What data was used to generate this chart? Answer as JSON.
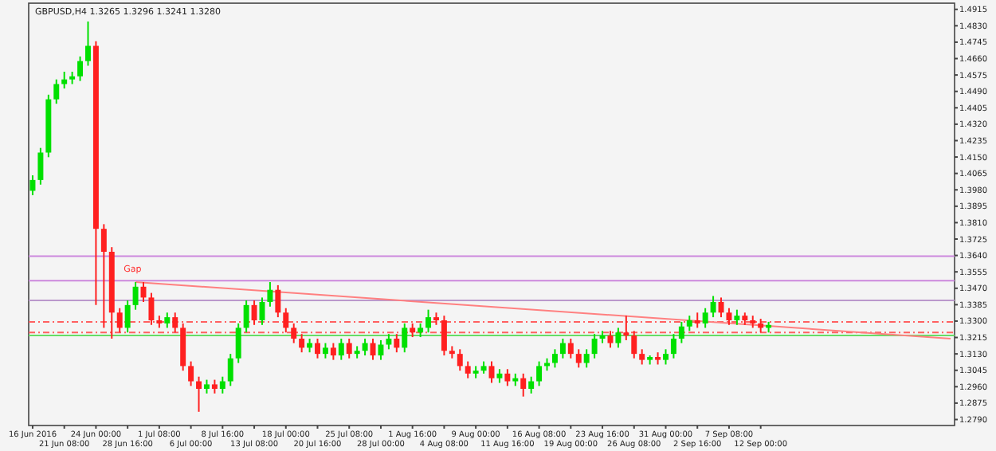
{
  "chart_data": {
    "type": "candlestick",
    "title": "GBPUSD,H4 1.3265 1.3296 1.3241 1.3280",
    "categories": [
      "16 Jun 2016",
      null,
      null,
      null,
      "21 Jun 08:00",
      null,
      null,
      null,
      "24 Jun 00:00",
      null,
      null,
      null,
      "28 Jun 16:00",
      null,
      null,
      null,
      "1 Jul 08:00",
      null,
      null,
      null,
      "6 Jul 00:00",
      null,
      null,
      null,
      "8 Jul 16:00",
      null,
      null,
      null,
      "13 Jul 08:00",
      null,
      null,
      null,
      "18 Jul 00:00",
      null,
      null,
      null,
      "20 Jul 16:00",
      null,
      null,
      null,
      "25 Jul 08:00",
      null,
      null,
      null,
      "28 Jul 00:00",
      null,
      null,
      null,
      "1 Aug 16:00",
      null,
      null,
      null,
      "4 Aug 08:00",
      null,
      null,
      null,
      "9 Aug 00:00",
      null,
      null,
      null,
      "11 Aug 16:00",
      null,
      null,
      null,
      "16 Aug 08:00",
      null,
      null,
      null,
      "19 Aug 00:00",
      null,
      null,
      null,
      "23 Aug 16:00",
      null,
      null,
      null,
      "26 Aug 08:00",
      null,
      null,
      null,
      "31 Aug 00:00",
      null,
      null,
      null,
      "2 Sep 16:00",
      null,
      null,
      null,
      "7 Sep 08:00",
      null,
      null,
      null,
      "12 Sep 00:00",
      null,
      null,
      null,
      null,
      null,
      null,
      null,
      null,
      null,
      null,
      null,
      null,
      null,
      null,
      null,
      null,
      null,
      null,
      null,
      null,
      null,
      null,
      null,
      null
    ],
    "ohlc": [
      [
        1.3975,
        1.4055,
        1.3952,
        1.4031
      ],
      [
        1.4031,
        1.4197,
        1.4007,
        1.4173
      ],
      [
        1.4173,
        1.4473,
        1.4149,
        1.4449
      ],
      [
        1.4449,
        1.4552,
        1.4426,
        1.4528
      ],
      [
        1.4528,
        1.4592,
        1.4505,
        1.4552
      ],
      [
        1.4552,
        1.4592,
        1.4528,
        1.4568
      ],
      [
        1.4568,
        1.4671,
        1.4544,
        1.4647
      ],
      [
        1.4647,
        1.4852,
        1.4623,
        1.4726
      ],
      [
        1.4726,
        1.475,
        1.3383,
        1.3778
      ],
      [
        1.3778,
        1.3802,
        1.3265,
        1.3659
      ],
      [
        1.3659,
        1.3683,
        1.3209,
        1.3344
      ],
      [
        1.3344,
        1.3367,
        1.3241,
        1.3265
      ],
      [
        1.3265,
        1.3407,
        1.3241,
        1.3383
      ],
      [
        1.3383,
        1.3502,
        1.3359,
        1.3478
      ],
      [
        1.3478,
        1.3502,
        1.3399,
        1.3422
      ],
      [
        1.3422,
        1.3446,
        1.328,
        1.3304
      ],
      [
        1.3304,
        1.3328,
        1.3265,
        1.3288
      ],
      [
        1.3288,
        1.3344,
        1.3265,
        1.332
      ],
      [
        1.332,
        1.3344,
        1.3241,
        1.3265
      ],
      [
        1.3265,
        1.3288,
        1.3043,
        1.3067
      ],
      [
        1.3067,
        1.3091,
        1.2964,
        1.2988
      ],
      [
        1.2988,
        1.3012,
        1.283,
        1.2949
      ],
      [
        1.2949,
        1.2996,
        1.2925,
        1.2972
      ],
      [
        1.2972,
        1.2996,
        1.2925,
        1.2949
      ],
      [
        1.2949,
        1.3012,
        1.2925,
        1.2988
      ],
      [
        1.2988,
        1.313,
        1.2964,
        1.3107
      ],
      [
        1.3107,
        1.3288,
        1.3083,
        1.3265
      ],
      [
        1.3265,
        1.3407,
        1.3241,
        1.3383
      ],
      [
        1.3383,
        1.3407,
        1.328,
        1.3304
      ],
      [
        1.3304,
        1.3422,
        1.328,
        1.3399
      ],
      [
        1.3399,
        1.3502,
        1.3375,
        1.3462
      ],
      [
        1.3462,
        1.3486,
        1.332,
        1.3344
      ],
      [
        1.3344,
        1.3367,
        1.3241,
        1.3265
      ],
      [
        1.3265,
        1.3288,
        1.3186,
        1.3209
      ],
      [
        1.3209,
        1.3233,
        1.3138,
        1.3162
      ],
      [
        1.3162,
        1.3209,
        1.3138,
        1.3186
      ],
      [
        1.3186,
        1.3209,
        1.3107,
        1.313
      ],
      [
        1.313,
        1.3186,
        1.3107,
        1.3162
      ],
      [
        1.3162,
        1.3186,
        1.3099,
        1.3122
      ],
      [
        1.3122,
        1.3209,
        1.3099,
        1.3186
      ],
      [
        1.3186,
        1.3209,
        1.3107,
        1.313
      ],
      [
        1.313,
        1.317,
        1.3107,
        1.3146
      ],
      [
        1.3146,
        1.3209,
        1.3122,
        1.3186
      ],
      [
        1.3186,
        1.3209,
        1.3099,
        1.3122
      ],
      [
        1.3122,
        1.3201,
        1.3099,
        1.3178
      ],
      [
        1.3178,
        1.3233,
        1.3154,
        1.3209
      ],
      [
        1.3209,
        1.3233,
        1.3138,
        1.3162
      ],
      [
        1.3162,
        1.3288,
        1.3138,
        1.3265
      ],
      [
        1.3265,
        1.3288,
        1.3217,
        1.3241
      ],
      [
        1.3241,
        1.3288,
        1.3217,
        1.3265
      ],
      [
        1.3265,
        1.3359,
        1.3241,
        1.332
      ],
      [
        1.332,
        1.3344,
        1.328,
        1.3304
      ],
      [
        1.3304,
        1.3328,
        1.3122,
        1.3146
      ],
      [
        1.3146,
        1.317,
        1.3107,
        1.313
      ],
      [
        1.313,
        1.3154,
        1.3043,
        1.3067
      ],
      [
        1.3067,
        1.3091,
        1.3004,
        1.3028
      ],
      [
        1.3028,
        1.3067,
        1.3004,
        1.3043
      ],
      [
        1.3043,
        1.3091,
        1.3028,
        1.3067
      ],
      [
        1.3067,
        1.3091,
        1.298,
        1.3004
      ],
      [
        1.3004,
        1.3051,
        1.298,
        1.3028
      ],
      [
        1.3028,
        1.3051,
        1.2964,
        1.2988
      ],
      [
        1.2988,
        1.3028,
        1.2964,
        1.3004
      ],
      [
        1.3004,
        1.3028,
        1.2909,
        1.2949
      ],
      [
        1.2949,
        1.3012,
        1.2925,
        1.2988
      ],
      [
        1.2988,
        1.3091,
        1.2964,
        1.3067
      ],
      [
        1.3067,
        1.3107,
        1.3043,
        1.3083
      ],
      [
        1.3083,
        1.3154,
        1.3059,
        1.313
      ],
      [
        1.313,
        1.3209,
        1.3107,
        1.3186
      ],
      [
        1.3186,
        1.3209,
        1.3107,
        1.313
      ],
      [
        1.313,
        1.3154,
        1.3059,
        1.3083
      ],
      [
        1.3083,
        1.3154,
        1.3059,
        1.313
      ],
      [
        1.313,
        1.3233,
        1.3107,
        1.3209
      ],
      [
        1.3209,
        1.3249,
        1.3186,
        1.3225
      ],
      [
        1.3225,
        1.3249,
        1.3162,
        1.3186
      ],
      [
        1.3186,
        1.3265,
        1.3162,
        1.3241
      ],
      [
        1.3241,
        1.3328,
        1.3201,
        1.3225
      ],
      [
        1.3225,
        1.3249,
        1.3107,
        1.313
      ],
      [
        1.313,
        1.3154,
        1.3075,
        1.3099
      ],
      [
        1.3099,
        1.3122,
        1.3075,
        1.3114
      ],
      [
        1.3114,
        1.3138,
        1.3075,
        1.3099
      ],
      [
        1.3099,
        1.3154,
        1.3075,
        1.313
      ],
      [
        1.313,
        1.3233,
        1.3107,
        1.3209
      ],
      [
        1.3209,
        1.3296,
        1.3186,
        1.3272
      ],
      [
        1.3272,
        1.3328,
        1.3249,
        1.3304
      ],
      [
        1.3304,
        1.3344,
        1.3265,
        1.3288
      ],
      [
        1.3288,
        1.3367,
        1.3265,
        1.3344
      ],
      [
        1.3344,
        1.343,
        1.332,
        1.3399
      ],
      [
        1.3399,
        1.3422,
        1.332,
        1.3344
      ],
      [
        1.3344,
        1.3367,
        1.328,
        1.3304
      ],
      [
        1.3304,
        1.3359,
        1.328,
        1.3328
      ],
      [
        1.3328,
        1.3344,
        1.328,
        1.3304
      ],
      [
        1.3304,
        1.3328,
        1.3265,
        1.3288
      ],
      [
        1.3288,
        1.3312,
        1.3241,
        1.3265
      ],
      [
        1.3265,
        1.3296,
        1.3241,
        1.328
      ],
      null,
      null,
      null,
      null,
      null,
      null,
      null,
      null,
      null,
      null,
      null,
      null,
      null,
      null,
      null,
      null,
      null,
      null,
      null,
      null,
      null,
      null,
      null
    ],
    "series": [
      {
        "type": "line",
        "color": "#ff8080",
        "values": [
          null,
          null,
          null,
          null,
          null,
          null,
          null,
          null,
          null,
          null,
          null,
          null,
          null,
          1.3502,
          null,
          null,
          null,
          null,
          null,
          null,
          null,
          null,
          null,
          null,
          null,
          null,
          null,
          null,
          null,
          null,
          null,
          null,
          null,
          null,
          null,
          null,
          null,
          null,
          null,
          null,
          null,
          null,
          null,
          null,
          null,
          null,
          null,
          null,
          null,
          null,
          null,
          null,
          null,
          null,
          null,
          null,
          null,
          null,
          null,
          null,
          null,
          null,
          null,
          null,
          null,
          null,
          null,
          null,
          null,
          null,
          null,
          null,
          null,
          null,
          null,
          null,
          null,
          null,
          null,
          null,
          null,
          null,
          null,
          null,
          null,
          null,
          null,
          null,
          null,
          null,
          null,
          null,
          null,
          null,
          null,
          null,
          null,
          null,
          null,
          null,
          null,
          null,
          null,
          null,
          null,
          null,
          null,
          null,
          null,
          null,
          null,
          null,
          null,
          null,
          null,
          null,
          1.3209
        ]
      }
    ],
    "ylim": [
      1.2759,
      1.4947
    ],
    "yticks": [
      {
        "value": 1.279,
        "label": "1.2790"
      },
      1.2875,
      {
        "value": 1.296,
        "label": "1.2960"
      },
      1.3045,
      {
        "value": 1.313,
        "label": "1.3130"
      },
      1.3215,
      {
        "value": 1.33,
        "label": "1.3300"
      },
      1.3385,
      {
        "value": 1.347,
        "label": "1.3470"
      },
      1.3555,
      {
        "value": 1.364,
        "label": "1.3640"
      },
      1.3725,
      {
        "value": 1.381,
        "label": "1.3810"
      },
      1.3895,
      {
        "value": 1.398,
        "label": "1.3980"
      },
      1.4065,
      {
        "value": 1.415,
        "label": "1.4150"
      },
      1.4235,
      {
        "value": 1.432,
        "label": "1.4320"
      },
      1.4405,
      {
        "value": 1.449,
        "label": "1.4490"
      },
      1.4575,
      {
        "value": 1.466,
        "label": "1.4660"
      },
      1.4745,
      {
        "value": 1.483,
        "label": "1.4830"
      },
      1.4915
    ],
    "ref_lines": [
      {
        "axis": "y",
        "value": 1.3636,
        "color": "#cc88dd"
      },
      {
        "axis": "y",
        "value": 1.3509,
        "color": "#cc88dd"
      },
      {
        "axis": "y",
        "value": 1.3407,
        "color": "#bb99cc"
      },
      {
        "axis": "y",
        "value": 1.3296,
        "color": "#ff6060",
        "line_style": "dashed"
      },
      {
        "axis": "y",
        "value": 1.3241,
        "color": "#ff6060",
        "line_style": "dashed"
      },
      {
        "axis": "y",
        "value": 1.3225,
        "color": "#66dd66"
      }
    ],
    "annotations": [
      "Gap"
    ],
    "grid": false
  }
}
